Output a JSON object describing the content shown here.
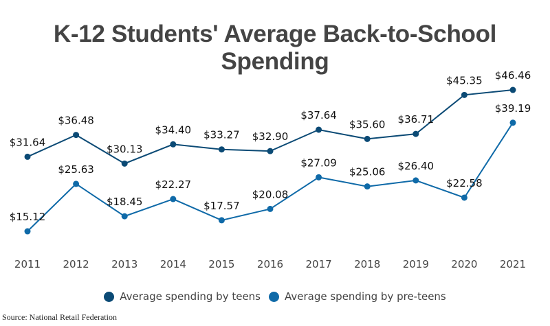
{
  "chart_data": {
    "type": "line",
    "title": "K-12 Students' Average Back-to-School Spending",
    "categories": [
      "2011",
      "2012",
      "2013",
      "2014",
      "2015",
      "2016",
      "2017",
      "2018",
      "2019",
      "2020",
      "2021"
    ],
    "series": [
      {
        "name": "Average spending by teens",
        "color": "#0b4a75",
        "values": [
          31.64,
          36.48,
          30.13,
          34.4,
          33.27,
          32.9,
          37.64,
          35.6,
          36.71,
          45.35,
          46.46
        ],
        "labels": [
          "$31.64",
          "$36.48",
          "$30.13",
          "$34.40",
          "$33.27",
          "$32.90",
          "$37.64",
          "$35.60",
          "$36.71",
          "$45.35",
          "$46.46"
        ]
      },
      {
        "name": "Average spending by pre-teens",
        "color": "#0f6aa8",
        "values": [
          15.12,
          25.63,
          18.45,
          22.27,
          17.57,
          20.08,
          27.09,
          25.06,
          26.4,
          22.58,
          39.19
        ],
        "labels": [
          "$15.12",
          "$25.63",
          "$18.45",
          "$22.27",
          "$17.57",
          "$20.08",
          "$27.09",
          "$25.06",
          "$26.40",
          "$22.58",
          "$39.19"
        ]
      }
    ],
    "grid": false,
    "y_axis_visible": false,
    "legend_placement": "bottom"
  },
  "source": "Source: National Retail Federation"
}
